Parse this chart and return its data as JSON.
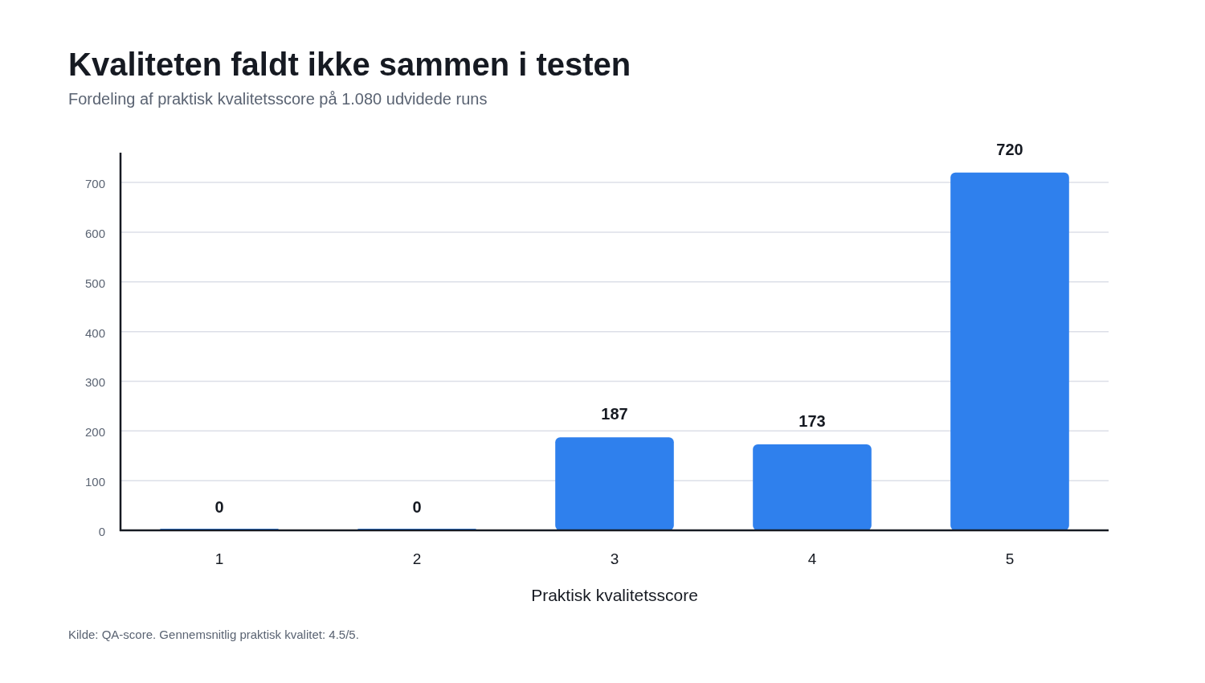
{
  "chart_data": {
    "type": "bar",
    "title": "Kvaliteten faldt ikke sammen i testen",
    "subtitle": "Fordeling af praktisk kvalitetsscore på 1.080 udvidede runs",
    "xlabel": "Praktisk kvalitetsscore",
    "categories": [
      "1",
      "2",
      "3",
      "4",
      "5"
    ],
    "values": [
      0,
      0,
      187,
      173,
      720
    ],
    "color": "#2f80ed",
    "ylim": [
      0,
      760
    ],
    "yticks": [
      0,
      100,
      200,
      300,
      400,
      500,
      600,
      700
    ],
    "grid": "y",
    "data_labels": true,
    "annotations": [
      "Kilde: QA-score. Gennemsnitlig praktisk kvalitet: 4.5/5."
    ]
  }
}
